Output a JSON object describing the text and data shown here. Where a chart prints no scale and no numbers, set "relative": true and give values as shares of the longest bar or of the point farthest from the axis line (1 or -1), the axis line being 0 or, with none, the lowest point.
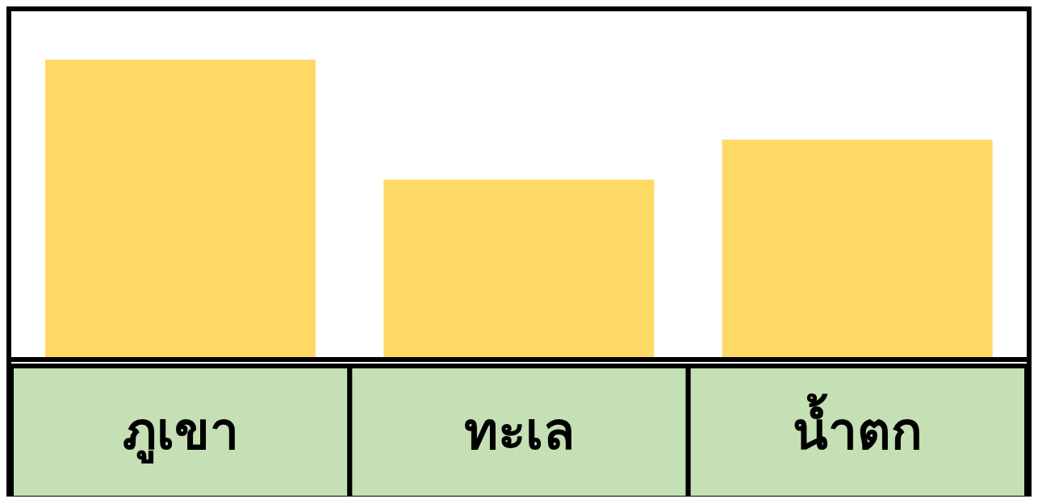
{
  "chart_data": {
    "type": "bar",
    "relative": true,
    "categories": [
      "ภูเขา",
      "ทะเล",
      "น้ำตก"
    ],
    "values": [
      1,
      0.6,
      0.7333
    ],
    "color": "#ffd966"
  }
}
